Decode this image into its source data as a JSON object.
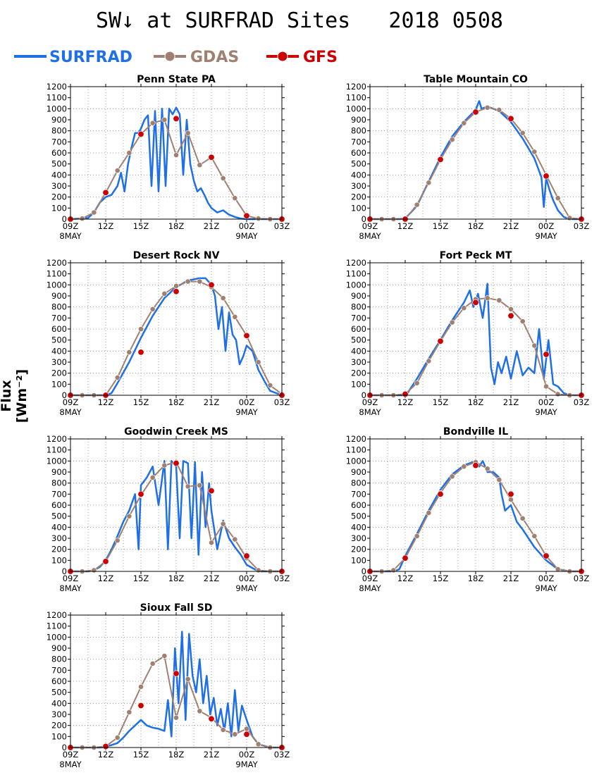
{
  "header": {
    "title": "SW↓ at SURFRAD Sites   2018 0508",
    "ylabel": "Flux [Wm⁻²]"
  },
  "legend": [
    {
      "name": "SURFRAD",
      "color": "#1f6fe6",
      "marker": "none"
    },
    {
      "name": "GDAS",
      "color": "#a08070",
      "marker": "circle"
    },
    {
      "name": "GFS",
      "color": "#cc0000",
      "marker": "circle"
    }
  ],
  "axis": {
    "ylim": [
      0,
      1200
    ],
    "yticks": [
      0,
      100,
      200,
      300,
      400,
      500,
      600,
      700,
      800,
      900,
      1000,
      1100,
      1200
    ],
    "xlim_hours": [
      9,
      27
    ],
    "xticks": [
      {
        "h": 9,
        "label": "09Z",
        "sub": "8MAY"
      },
      {
        "h": 12,
        "label": "12Z",
        "sub": ""
      },
      {
        "h": 15,
        "label": "15Z",
        "sub": ""
      },
      {
        "h": 18,
        "label": "18Z",
        "sub": ""
      },
      {
        "h": 21,
        "label": "21Z",
        "sub": ""
      },
      {
        "h": 24,
        "label": "00Z",
        "sub": "9MAY"
      },
      {
        "h": 27,
        "label": "03Z",
        "sub": ""
      }
    ],
    "grid": true
  },
  "chart_data": [
    {
      "type": "line",
      "title": "Penn State PA",
      "gdas": {
        "x": [
          9,
          10,
          11,
          12,
          13,
          14,
          15,
          16,
          17,
          18,
          19,
          20,
          21,
          22,
          23,
          24,
          25,
          26,
          27
        ],
        "y": [
          0,
          5,
          60,
          240,
          440,
          600,
          770,
          870,
          900,
          580,
          780,
          490,
          560,
          370,
          190,
          30,
          5,
          0,
          0
        ]
      },
      "gfs": {
        "x": [
          9,
          12,
          15,
          18,
          21,
          24,
          27
        ],
        "y": [
          0,
          240,
          770,
          910,
          560,
          30,
          0
        ]
      },
      "surfrad": {
        "x": [
          9,
          10.5,
          11,
          11.5,
          12,
          12.5,
          13,
          13.3,
          13.6,
          13.9,
          14.2,
          14.5,
          14.8,
          15,
          15.3,
          15.6,
          15.9,
          16.2,
          16.5,
          16.8,
          17.1,
          17.4,
          17.7,
          18,
          18.3,
          18.6,
          18.9,
          19.2,
          19.5,
          19.8,
          20.1,
          20.4,
          20.7,
          21,
          21.5,
          22,
          22.5,
          23,
          23.5,
          24,
          25,
          27
        ],
        "y": [
          0,
          10,
          60,
          150,
          200,
          220,
          300,
          420,
          250,
          500,
          650,
          780,
          780,
          820,
          900,
          940,
          300,
          980,
          250,
          1000,
          300,
          1000,
          950,
          1010,
          950,
          400,
          900,
          500,
          350,
          250,
          280,
          220,
          150,
          100,
          60,
          80,
          40,
          20,
          5,
          0,
          0,
          0
        ]
      }
    },
    {
      "type": "line",
      "title": "Table Mountain CO",
      "gdas": {
        "x": [
          9,
          10,
          11,
          12,
          13,
          14,
          15,
          16,
          17,
          18,
          19,
          20,
          21,
          22,
          23,
          24,
          25,
          26,
          27
        ],
        "y": [
          0,
          0,
          0,
          0,
          130,
          330,
          540,
          720,
          870,
          970,
          1010,
          990,
          910,
          780,
          610,
          400,
          190,
          10,
          0
        ]
      },
      "gfs": {
        "x": [
          9,
          12,
          15,
          18,
          21,
          24,
          27
        ],
        "y": [
          0,
          0,
          540,
          970,
          910,
          390,
          0
        ]
      },
      "surfrad": {
        "x": [
          9,
          11.5,
          12,
          13,
          14,
          15,
          16,
          17,
          18,
          18.3,
          18.5,
          19,
          20,
          21,
          22,
          23,
          23.6,
          23.8,
          24,
          24.3,
          24.6,
          25,
          25.5,
          26,
          27
        ],
        "y": [
          0,
          0,
          5,
          120,
          340,
          560,
          750,
          880,
          990,
          1070,
          1000,
          1020,
          980,
          880,
          730,
          550,
          380,
          110,
          370,
          260,
          170,
          80,
          20,
          0,
          0
        ]
      }
    },
    {
      "type": "line",
      "title": "Desert Rock NV",
      "gdas": {
        "x": [
          9,
          10,
          11,
          12,
          13,
          14,
          15,
          16,
          17,
          18,
          19,
          20,
          21,
          22,
          23,
          24,
          25,
          26,
          27
        ],
        "y": [
          0,
          0,
          0,
          0,
          160,
          390,
          600,
          780,
          920,
          990,
          1030,
          1030,
          980,
          880,
          710,
          540,
          300,
          90,
          10
        ]
      },
      "gfs": {
        "x": [
          9,
          12,
          15,
          18,
          21,
          24,
          27
        ],
        "y": [
          0,
          0,
          390,
          940,
          1000,
          540,
          0
        ]
      },
      "surfrad": {
        "x": [
          9,
          12,
          12.5,
          13,
          14,
          15,
          16,
          17,
          18,
          19,
          20,
          20.5,
          21,
          21.3,
          21.6,
          21.9,
          22.2,
          22.5,
          22.8,
          23.1,
          23.4,
          23.7,
          24,
          24.5,
          25,
          25.5,
          26,
          27
        ],
        "y": [
          0,
          0,
          20,
          110,
          300,
          520,
          720,
          880,
          980,
          1040,
          1060,
          1060,
          1000,
          900,
          600,
          800,
          400,
          750,
          550,
          500,
          280,
          350,
          450,
          400,
          230,
          130,
          40,
          0
        ]
      }
    },
    {
      "type": "line",
      "title": "Fort Peck MT",
      "gdas": {
        "x": [
          9,
          10,
          11,
          12,
          13,
          14,
          15,
          16,
          17,
          18,
          19,
          20,
          21,
          22,
          23,
          24,
          25,
          26,
          27
        ],
        "y": [
          0,
          0,
          0,
          10,
          110,
          310,
          490,
          660,
          790,
          870,
          880,
          860,
          780,
          670,
          450,
          80,
          10,
          0,
          0
        ]
      },
      "gfs": {
        "x": [
          9,
          12,
          15,
          18,
          21,
          24,
          27
        ],
        "y": [
          0,
          10,
          490,
          840,
          720,
          370,
          0
        ]
      },
      "surfrad": {
        "x": [
          9,
          11.8,
          12.2,
          13,
          14,
          15,
          16,
          17,
          17.5,
          17.8,
          18.2,
          18.6,
          19,
          19.3,
          19.6,
          19.9,
          20.2,
          20.6,
          21,
          21.5,
          22,
          22.5,
          23,
          23.4,
          23.8,
          24.2,
          24.6,
          25,
          25.5,
          26,
          27
        ],
        "y": [
          0,
          0,
          20,
          150,
          330,
          500,
          680,
          840,
          950,
          800,
          920,
          700,
          1010,
          250,
          100,
          300,
          200,
          350,
          150,
          400,
          180,
          250,
          200,
          600,
          150,
          500,
          100,
          80,
          20,
          0,
          0
        ]
      }
    },
    {
      "type": "line",
      "title": "Goodwin Creek MS",
      "gdas": {
        "x": [
          9,
          10,
          11,
          12,
          13,
          14,
          15,
          16,
          17,
          18,
          19,
          20,
          21,
          22,
          23,
          24,
          25,
          26,
          27
        ],
        "y": [
          0,
          0,
          10,
          90,
          280,
          500,
          690,
          850,
          960,
          990,
          770,
          780,
          260,
          430,
          290,
          120,
          10,
          0,
          0
        ]
      },
      "gfs": {
        "x": [
          9,
          12,
          15,
          18,
          21,
          24,
          27
        ],
        "y": [
          0,
          90,
          700,
          980,
          730,
          140,
          0
        ]
      },
      "surfrad": {
        "x": [
          9,
          10.5,
          11,
          11.5,
          12,
          12.5,
          13,
          13.5,
          14,
          14.5,
          14.8,
          15,
          15.5,
          16,
          16.5,
          17,
          17.3,
          17.6,
          18,
          18.3,
          18.6,
          19,
          19.3,
          19.6,
          19.9,
          20.2,
          20.5,
          20.8,
          21,
          21.5,
          22,
          22.5,
          23,
          23.5,
          24,
          25,
          27
        ],
        "y": [
          0,
          0,
          10,
          40,
          100,
          200,
          320,
          450,
          550,
          700,
          200,
          780,
          850,
          950,
          600,
          1000,
          200,
          1000,
          950,
          300,
          1000,
          980,
          300,
          990,
          150,
          900,
          400,
          800,
          550,
          200,
          460,
          300,
          220,
          150,
          60,
          0,
          0
        ]
      }
    },
    {
      "type": "line",
      "title": "Bondville IL",
      "gdas": {
        "x": [
          9,
          10,
          11,
          12,
          13,
          14,
          15,
          16,
          17,
          18,
          19,
          20,
          21,
          22,
          23,
          24,
          25,
          26,
          27
        ],
        "y": [
          0,
          0,
          10,
          120,
          320,
          530,
          710,
          860,
          950,
          990,
          930,
          830,
          650,
          480,
          320,
          140,
          20,
          0,
          0
        ]
      },
      "gfs": {
        "x": [
          9,
          12,
          15,
          18,
          21,
          24,
          27
        ],
        "y": [
          0,
          120,
          700,
          960,
          700,
          140,
          0
        ]
      },
      "surfrad": {
        "x": [
          9,
          11,
          11.5,
          12,
          13,
          14,
          15,
          16,
          17,
          18,
          18.3,
          18.6,
          19,
          19.5,
          20,
          20.2,
          20.5,
          21,
          21.5,
          22,
          22.5,
          23,
          23.5,
          24,
          24.5,
          25,
          26,
          27
        ],
        "y": [
          0,
          0,
          20,
          140,
          340,
          550,
          740,
          880,
          960,
          1000,
          950,
          1000,
          900,
          900,
          850,
          700,
          550,
          600,
          450,
          380,
          300,
          220,
          160,
          100,
          60,
          20,
          0,
          0
        ]
      }
    },
    {
      "type": "line",
      "title": "Sioux Fall SD",
      "gdas": {
        "x": [
          9,
          10,
          11,
          12,
          13,
          14,
          15,
          16,
          17,
          18,
          19,
          20,
          21,
          22,
          23,
          24,
          25,
          26,
          27
        ],
        "y": [
          0,
          0,
          0,
          10,
          90,
          320,
          550,
          760,
          830,
          270,
          620,
          330,
          270,
          160,
          120,
          170,
          30,
          0,
          0
        ]
      },
      "gfs": {
        "x": [
          9,
          12,
          15,
          18,
          21,
          24,
          27
        ],
        "y": [
          0,
          10,
          380,
          670,
          260,
          120,
          0
        ]
      },
      "surfrad": {
        "x": [
          9,
          11.5,
          12,
          13,
          13.5,
          14,
          14.5,
          15,
          15.5,
          16,
          16.5,
          17,
          17.3,
          17.6,
          17.9,
          18.2,
          18.5,
          18.8,
          19.1,
          19.4,
          19.7,
          20,
          20.3,
          20.6,
          20.9,
          21.2,
          21.5,
          21.8,
          22.1,
          22.4,
          22.7,
          23,
          23.3,
          23.6,
          24,
          24.5,
          25,
          26,
          27
        ],
        "y": [
          0,
          0,
          5,
          40,
          90,
          150,
          200,
          250,
          200,
          180,
          170,
          150,
          430,
          100,
          900,
          400,
          1050,
          250,
          1030,
          650,
          500,
          800,
          400,
          650,
          300,
          450,
          200,
          350,
          150,
          400,
          100,
          520,
          150,
          380,
          250,
          100,
          30,
          0,
          0
        ]
      }
    }
  ]
}
